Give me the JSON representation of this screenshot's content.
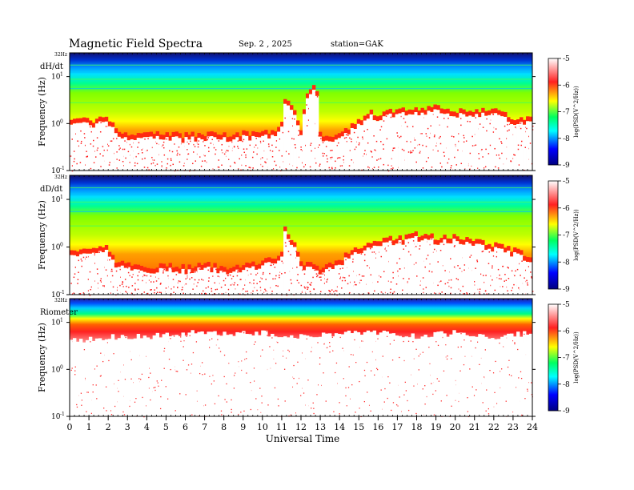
{
  "header": {
    "title": "Magnetic  Field  Spectra",
    "date": "Sep. 2  , 2025",
    "station": "station=GAK"
  },
  "xaxis": {
    "label": "Universal Time",
    "ticks": [
      "0",
      "1",
      "2",
      "3",
      "4",
      "5",
      "6",
      "7",
      "8",
      "9",
      "10",
      "11",
      "12",
      "13",
      "14",
      "15",
      "16",
      "17",
      "18",
      "19",
      "20",
      "21",
      "22",
      "23",
      "24"
    ]
  },
  "colorbar": {
    "label": "log(PSD(V^2/Hz))",
    "ticks": [
      "-5",
      "-6",
      "-7",
      "-8",
      "-9"
    ],
    "colors": [
      "#ffffff",
      "#ff2020",
      "#ffff00",
      "#00ff60",
      "#00ffff",
      "#0000ff",
      "#000080"
    ]
  },
  "panels": [
    {
      "name": "dH/dt",
      "ylabel": "Frequency (Hz)",
      "top_label": "32Hz",
      "ytick_top": "10",
      "ytick_top_exp": "1",
      "ytick_mid": "10",
      "ytick_mid_exp": "0",
      "ytick_bot": "10",
      "ytick_bot_exp": "-1"
    },
    {
      "name": "dD/dt",
      "ylabel": "Frequency (Hz)",
      "top_label": "32Hz",
      "ytick_top": "10",
      "ytick_top_exp": "1",
      "ytick_mid": "10",
      "ytick_mid_exp": "0",
      "ytick_bot": "10",
      "ytick_bot_exp": "-1"
    },
    {
      "name": "Riometer",
      "ylabel": "Frequency (Hz)",
      "top_label": "32Hz",
      "ytick_top": "10",
      "ytick_top_exp": "1",
      "ytick_mid": "10",
      "ytick_mid_exp": "0",
      "ytick_bot": "10",
      "ytick_bot_exp": "-1"
    }
  ],
  "chart_data": {
    "type": "heatmap",
    "title": "Magnetic  Field  Spectra",
    "xlabel": "Universal Time",
    "ylabel": "Frequency (Hz)",
    "xlim": [
      0,
      24
    ],
    "ylim_hz": [
      0.1,
      32
    ],
    "yscale": "log",
    "color_scale": {
      "label": "log(PSD(V^2/Hz))",
      "range": [
        -9,
        -5
      ]
    },
    "panels": [
      {
        "name": "dH/dt",
        "noise_floor_boundary_hz": {
          "ut": [
            0,
            1,
            2,
            2.4,
            3,
            4,
            5,
            6,
            7,
            8,
            9,
            10,
            11,
            11.1,
            12,
            12.7,
            13,
            14,
            15,
            15.5,
            16,
            17,
            18,
            19,
            20,
            21,
            22,
            23,
            24
          ],
          "hz": [
            0.9,
            0.95,
            1.0,
            0.6,
            0.5,
            0.45,
            0.5,
            0.45,
            0.5,
            0.45,
            0.5,
            0.5,
            0.6,
            3.0,
            0.5,
            6.0,
            0.4,
            0.5,
            0.9,
            1.5,
            1.3,
            1.5,
            1.6,
            1.8,
            1.5,
            1.6,
            1.5,
            1.1,
            1.0
          ]
        }
      },
      {
        "name": "dD/dt",
        "noise_floor_boundary_hz": {
          "ut": [
            0,
            1,
            2,
            2.4,
            3,
            4,
            5,
            6,
            7,
            8,
            9,
            10,
            11,
            11.1,
            12,
            13,
            14,
            15,
            16,
            17,
            18,
            19,
            20,
            21,
            22,
            23,
            24
          ],
          "hz": [
            0.7,
            0.75,
            0.8,
            0.4,
            0.35,
            0.3,
            0.35,
            0.3,
            0.35,
            0.3,
            0.35,
            0.4,
            0.5,
            2.0,
            0.4,
            0.3,
            0.4,
            0.8,
            1.2,
            1.2,
            1.5,
            1.3,
            1.3,
            1.1,
            0.9,
            0.7,
            0.5
          ]
        }
      },
      {
        "name": "Riometer",
        "noise_floor_boundary_hz": {
          "ut": [
            0,
            2,
            4,
            6,
            8,
            10,
            12,
            14,
            16,
            18,
            20,
            22,
            24
          ],
          "hz": [
            4,
            5,
            5,
            6,
            6,
            6,
            5,
            6,
            6,
            5,
            6,
            5,
            6
          ]
        }
      }
    ]
  }
}
